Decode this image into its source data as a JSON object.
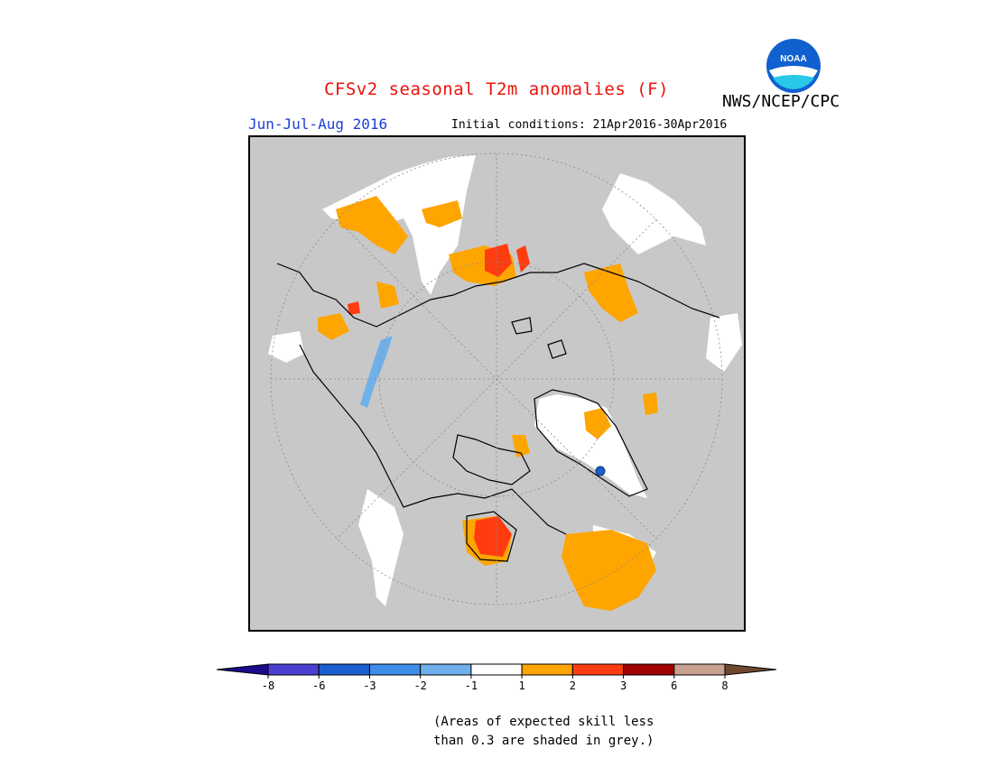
{
  "title": "CFSv2 seasonal T2m anomalies (F)",
  "season": "Jun-Jul-Aug 2016",
  "initial_conditions": "Initial conditions: 21Apr2016-30Apr2016",
  "agency": "NWS/NCEP/CPC",
  "logo_text": "NOAA",
  "note_line1": "(Areas of expected skill less",
  "note_line2": "than 0.3 are shaded in grey.)",
  "colors": {
    "skill_mask_grey": "#c8c8c8",
    "neutral_white": "#ffffff",
    "warm_1_2": "#ffa500",
    "warm_2_3": "#ff3c10",
    "cold_1_2": "#6fb0ea",
    "title_red": "#e8140a",
    "season_blue": "#1d3fd6"
  },
  "legend": {
    "colors": [
      "#1a0a8c",
      "#4a3fd0",
      "#1a5fd0",
      "#3c8ce8",
      "#6fb0ea",
      "#ffffff",
      "#ffa500",
      "#ff3c10",
      "#a00000",
      "#c8a090",
      "#704830"
    ],
    "labels": [
      "-8",
      "-6",
      "-3",
      "-2",
      "-1",
      "1",
      "2",
      "3",
      "6",
      "8"
    ]
  }
}
